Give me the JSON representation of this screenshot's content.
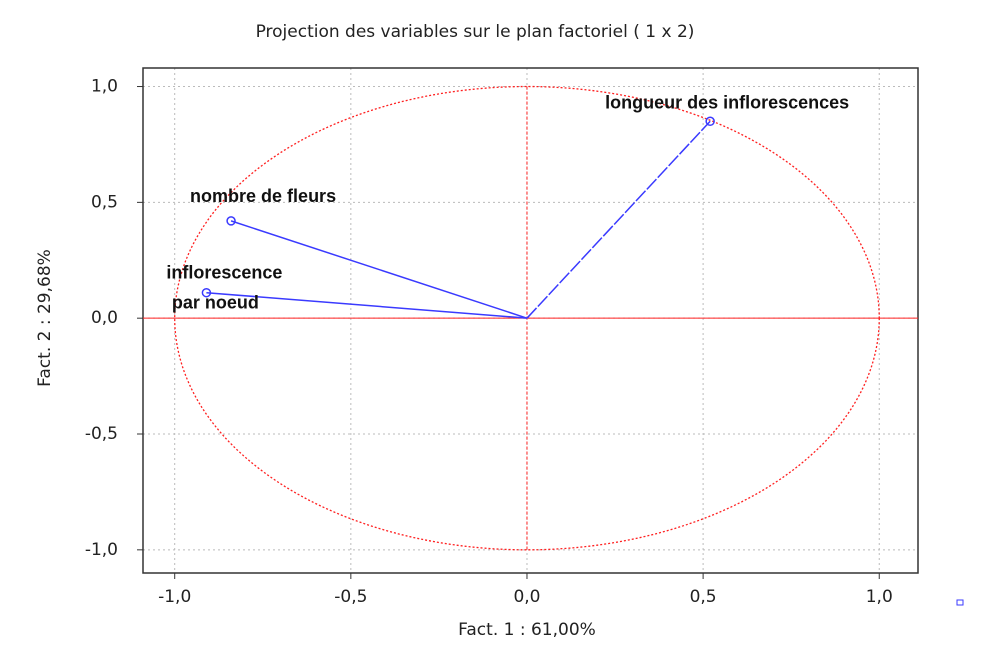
{
  "chart_data": {
    "type": "scatter",
    "title": "Projection des variables sur le plan factoriel ( 1 x 2)",
    "x_label": "Fact. 1 : 61,00%",
    "y_label": "Fact. 2 : 29,68%",
    "x": [
      0.52,
      -0.84,
      -0.91
    ],
    "values": [
      0.85,
      0.42,
      0.11
    ],
    "labels": [
      [
        "longueur des inflorescences"
      ],
      [
        "nombre de fleurs"
      ],
      [
        "inflorescence",
        "par noeud"
      ]
    ],
    "color": "#3a3aff",
    "axis_color": "#ff2020",
    "reference_circle": 1,
    "xlim": [
      -1.09,
      1.11
    ],
    "ylim": [
      -1.1,
      1.08
    ],
    "xticks": [
      {
        "value": -1,
        "label": "-1,0"
      },
      {
        "value": -0.5,
        "label": "-0,5"
      },
      {
        "value": 0,
        "label": "0,0"
      },
      {
        "value": 0.5,
        "label": "0,5"
      },
      {
        "value": 1,
        "label": "1,0"
      }
    ],
    "yticks": [
      {
        "value": -1,
        "label": "-1,0"
      },
      {
        "value": -0.5,
        "label": "-0,5"
      },
      {
        "value": 0,
        "label": "0,0"
      },
      {
        "value": 0.5,
        "label": "0,5"
      },
      {
        "value": 1,
        "label": "1,0"
      }
    ],
    "grid": true
  }
}
